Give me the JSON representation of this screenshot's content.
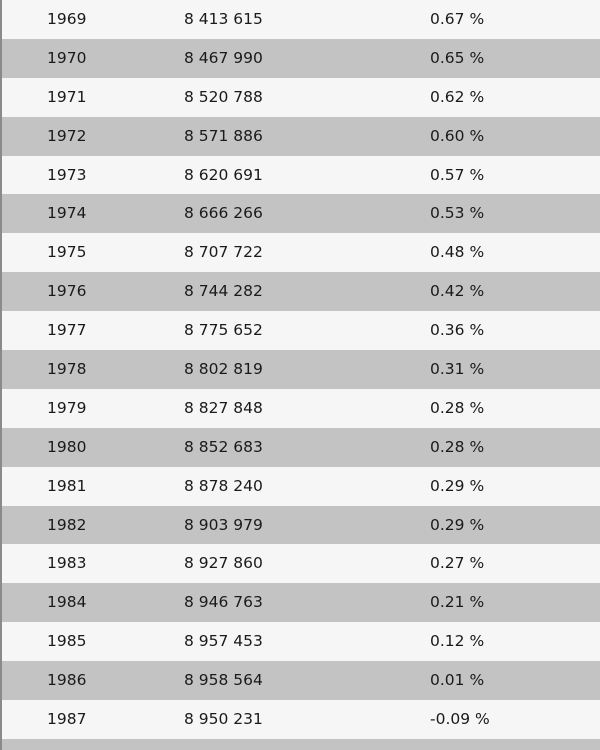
{
  "table": {
    "rows": [
      {
        "year": "1969",
        "population": "8 413 615",
        "growth": "0.67 %"
      },
      {
        "year": "1970",
        "population": "8 467 990",
        "growth": "0.65 %"
      },
      {
        "year": "1971",
        "population": "8 520 788",
        "growth": "0.62 %"
      },
      {
        "year": "1972",
        "population": "8 571 886",
        "growth": "0.60 %"
      },
      {
        "year": "1973",
        "population": "8 620 691",
        "growth": "0.57 %"
      },
      {
        "year": "1974",
        "population": "8 666 266",
        "growth": "0.53 %"
      },
      {
        "year": "1975",
        "population": "8 707 722",
        "growth": "0.48 %"
      },
      {
        "year": "1976",
        "population": "8 744 282",
        "growth": "0.42 %"
      },
      {
        "year": "1977",
        "population": "8 775 652",
        "growth": "0.36 %"
      },
      {
        "year": "1978",
        "population": "8 802 819",
        "growth": "0.31 %"
      },
      {
        "year": "1979",
        "population": "8 827 848",
        "growth": "0.28 %"
      },
      {
        "year": "1980",
        "population": "8 852 683",
        "growth": "0.28 %"
      },
      {
        "year": "1981",
        "population": "8 878 240",
        "growth": "0.29 %"
      },
      {
        "year": "1982",
        "population": "8 903 979",
        "growth": "0.29 %"
      },
      {
        "year": "1983",
        "population": "8 927 860",
        "growth": "0.27 %"
      },
      {
        "year": "1984",
        "population": "8 946 763",
        "growth": "0.21 %"
      },
      {
        "year": "1985",
        "population": "8 957 453",
        "growth": "0.12 %"
      },
      {
        "year": "1986",
        "population": "8 958 564",
        "growth": "0.01 %"
      },
      {
        "year": "1987",
        "population": "8 950 231",
        "growth": "-0.09 %"
      },
      {
        "year": "",
        "population": "",
        "growth": ""
      }
    ]
  },
  "colors": {
    "row_light": "#f6f6f6",
    "row_dark": "#c3c3c3",
    "text": "#1a1a1a"
  }
}
